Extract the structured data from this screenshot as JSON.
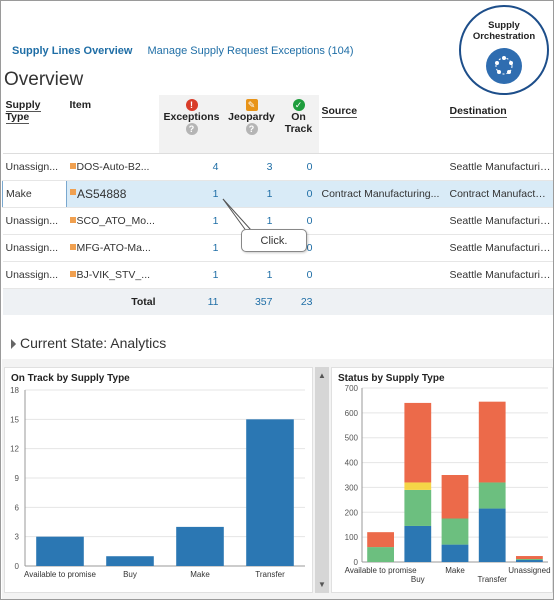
{
  "tabs": [
    {
      "label": "Supply Lines Overview",
      "active": true
    },
    {
      "label": "Manage Supply Request Exceptions (104)",
      "active": false
    }
  ],
  "badge": {
    "line1": "Supply",
    "line2": "Orchestration",
    "icon": "orchestration-icon"
  },
  "page_title": "Overview",
  "table": {
    "headers": {
      "supply_type": "Supply Type",
      "item": "Item",
      "exceptions": "Exceptions",
      "jeopardy": "Jeopardy",
      "on_track": "On Track",
      "source": "Source",
      "destination": "Destination"
    },
    "rows": [
      {
        "supply_type": "Unassign...",
        "item": "DOS-Auto-B2...",
        "exceptions": "4",
        "jeopardy": "3",
        "on_track": "0",
        "source": "",
        "destination": "Seattle Manufacturing"
      },
      {
        "supply_type": "Make",
        "item": "AS54888",
        "exceptions": "1",
        "jeopardy": "1",
        "on_track": "0",
        "source": "Contract Manufacturing...",
        "destination": "Contract Manufacturing"
      },
      {
        "supply_type": "Unassign...",
        "item": "SCO_ATO_Mo...",
        "exceptions": "1",
        "jeopardy": "1",
        "on_track": "0",
        "source": "",
        "destination": "Seattle Manufacturing"
      },
      {
        "supply_type": "Unassign...",
        "item": "MFG-ATO-Ma...",
        "exceptions": "1",
        "jeopardy": "1",
        "on_track": "0",
        "source": "",
        "destination": "Seattle Manufacturing"
      },
      {
        "supply_type": "Unassign...",
        "item": "BJ-VIK_STV_...",
        "exceptions": "1",
        "jeopardy": "1",
        "on_track": "0",
        "source": "",
        "destination": "Seattle Manufacturing"
      }
    ],
    "total": {
      "label": "Total",
      "exceptions": "11",
      "jeopardy": "357",
      "on_track": "23"
    }
  },
  "callout": "Click.",
  "analytics": {
    "title": "Current State: Analytics"
  },
  "chart_data": [
    {
      "type": "bar",
      "title": "On Track by Supply Type",
      "categories": [
        "Available to promise",
        "Buy",
        "Make",
        "Transfer"
      ],
      "values": [
        3,
        1,
        4,
        15
      ],
      "ylim": [
        0,
        18
      ],
      "yticks": [
        0,
        3,
        6,
        9,
        12,
        15,
        18
      ],
      "color": "#2b77b3",
      "grid": true
    },
    {
      "type": "bar",
      "stacked": true,
      "title": "Status by Supply Type",
      "categories": [
        "Available to promise",
        "Buy",
        "Make",
        "Transfer",
        "Unassigned"
      ],
      "series": [
        {
          "values": [
            0,
            145,
            70,
            215,
            8
          ],
          "color": "#2b77b3"
        },
        {
          "values": [
            60,
            145,
            105,
            105,
            4
          ],
          "color": "#6cbf7f"
        },
        {
          "values": [
            0,
            30,
            0,
            0,
            0
          ],
          "color": "#f5d547"
        },
        {
          "values": [
            60,
            320,
            175,
            325,
            12
          ],
          "color": "#ec6a4a"
        }
      ],
      "ylim": [
        0,
        700
      ],
      "yticks": [
        0,
        100,
        200,
        300,
        400,
        500,
        600,
        700
      ],
      "grid": true
    }
  ]
}
